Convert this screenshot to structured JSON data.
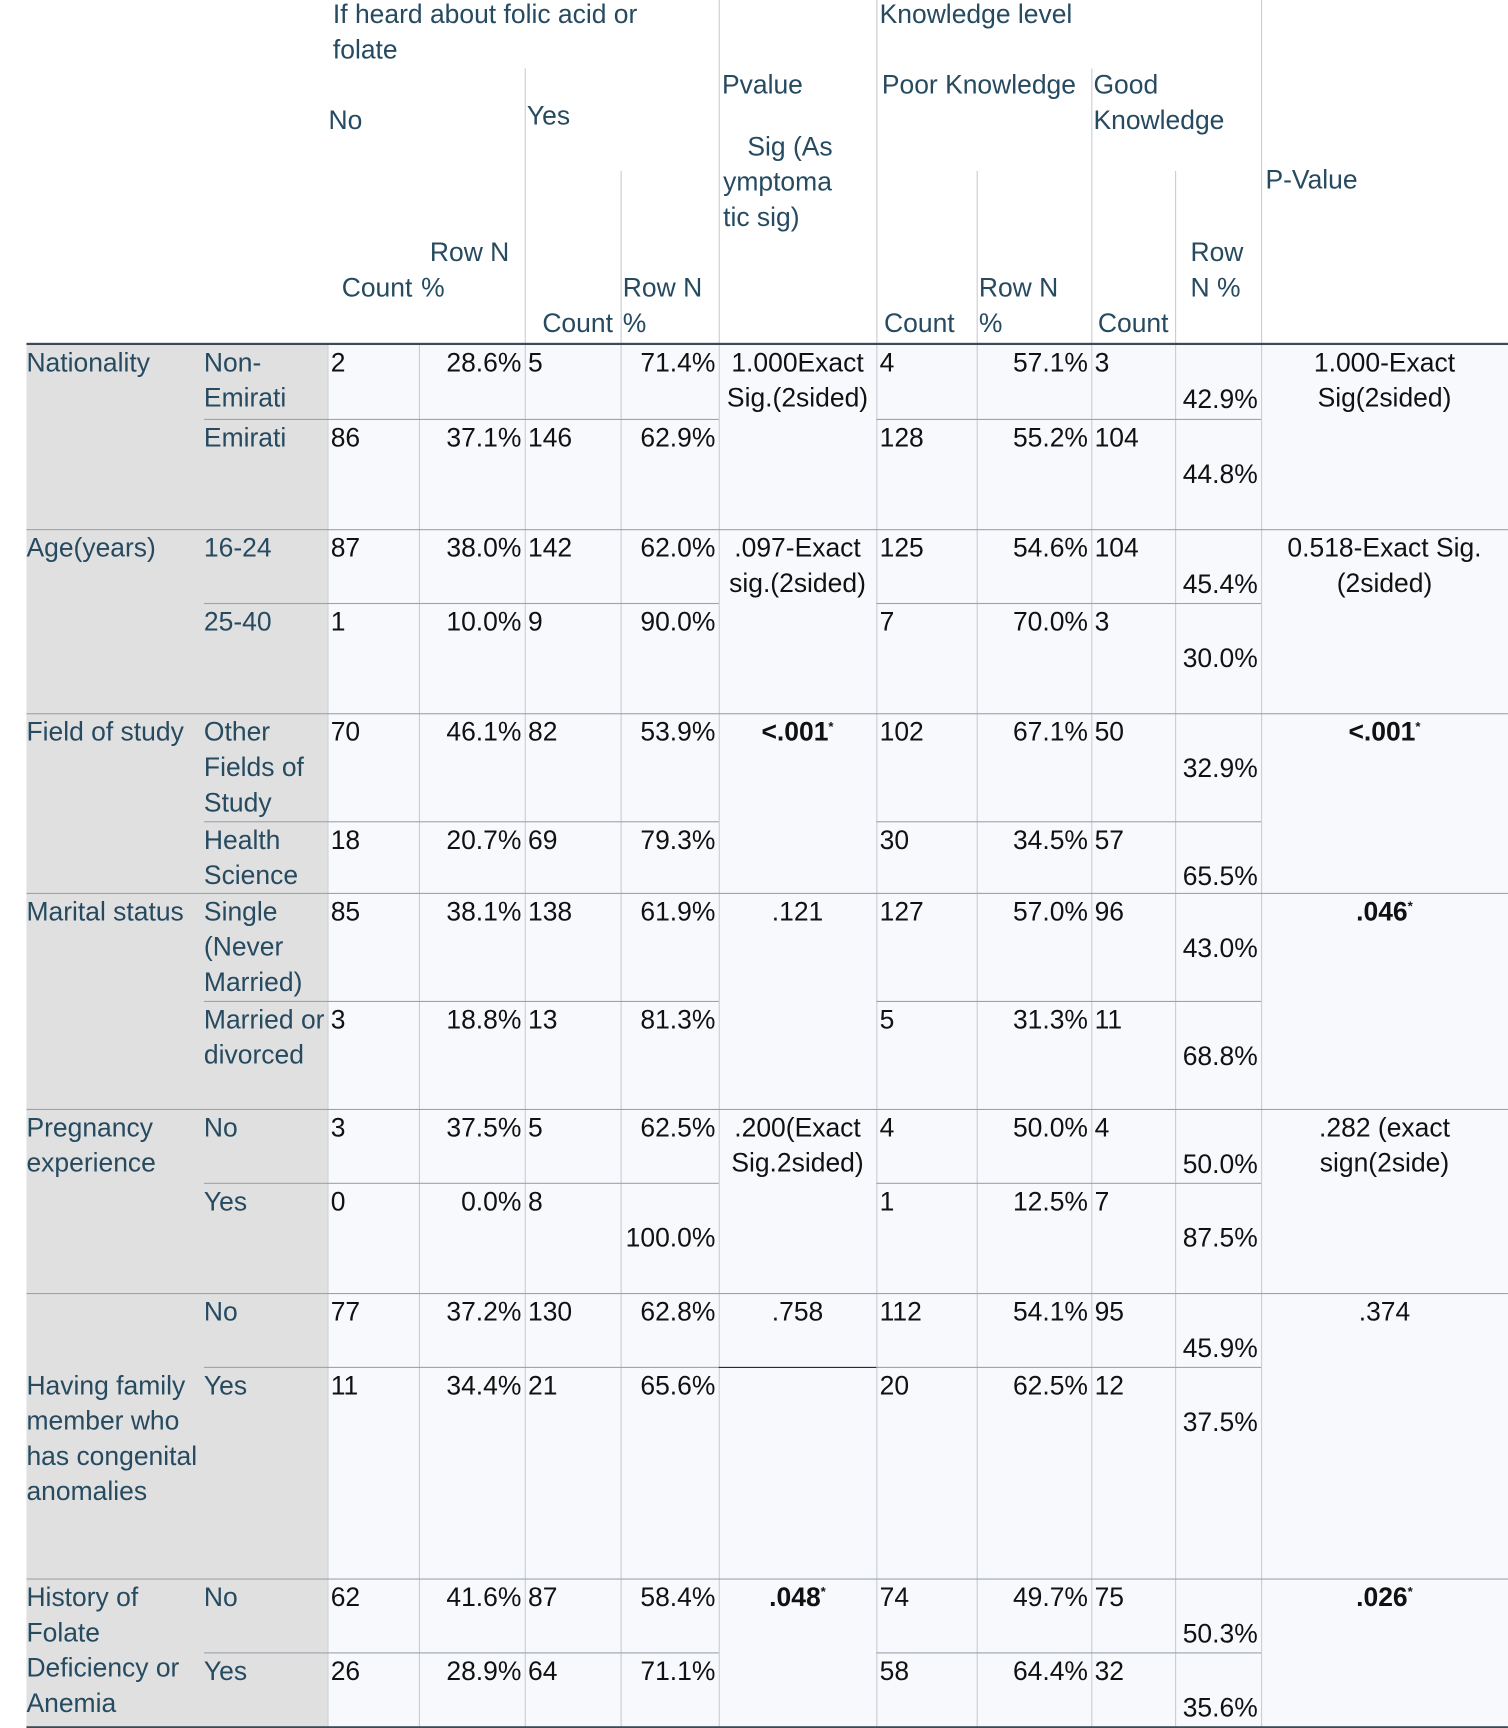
{
  "header": {
    "group1": "If heard about folic acid or folate",
    "no": "No",
    "yes": "Yes",
    "pvalue1": "Pvalue",
    "pvalue1_sub": "Sig (Asymptomatic sig)",
    "group2": "Knowledge level",
    "poor": "Poor Knowledge",
    "good": "Good Knowledge",
    "pvalue2": "P-Value",
    "count1": "Count",
    "rown1": "Row N %",
    "count2": "Count",
    "rown2": "Row N %",
    "count3": "Count",
    "rown3": "Row N %",
    "count4": "Count",
    "rown4": "Row N %"
  },
  "table": {
    "groups": [
      {
        "label": "Nationality",
        "p1": {
          "text": "1.000Exact Sig.(2sided)"
        },
        "p2": {
          "text": "1.000-Exact Sig(2sided)"
        },
        "rows": [
          {
            "label": "Non-Emirati",
            "cells": [
              2,
              "28.6%",
              5,
              "71.4%",
              4,
              "57.1%",
              3,
              "42.9%"
            ]
          },
          {
            "label": "Emirati",
            "cells": [
              86,
              "37.1%",
              146,
              "62.9%",
              128,
              "55.2%",
              104,
              "44.8%"
            ]
          }
        ]
      },
      {
        "label": "Age(years)",
        "p1": {
          "text": ".097-Exact sig.(2sided)"
        },
        "p2": {
          "text": "0.518-Exact Sig.(2sided)"
        },
        "rows": [
          {
            "label": "16-24",
            "cells": [
              87,
              "38.0%",
              142,
              "62.0%",
              125,
              "54.6%",
              104,
              "45.4%"
            ]
          },
          {
            "label": "25-40",
            "cells": [
              1,
              "10.0%",
              9,
              "90.0%",
              7,
              "70.0%",
              3,
              "30.0%"
            ]
          }
        ]
      },
      {
        "label": "Field of study",
        "p1": {
          "text": "<.001",
          "sup": "*",
          "bold": true
        },
        "p2": {
          "text": "<.001",
          "sup": "*",
          "bold": true
        },
        "rows": [
          {
            "label": "Other Fields of Study",
            "cells": [
              70,
              "46.1%",
              82,
              "53.9%",
              102,
              "67.1%",
              50,
              "32.9%"
            ]
          },
          {
            "label": "Health Science",
            "cells": [
              18,
              "20.7%",
              69,
              "79.3%",
              30,
              "34.5%",
              57,
              "65.5%"
            ]
          }
        ]
      },
      {
        "label": "Marital status",
        "p1": {
          "text": ".121"
        },
        "p2": {
          "text": ".046",
          "sup": "*",
          "bold": true
        },
        "rows": [
          {
            "label": "Single (Never Married)",
            "cells": [
              85,
              "38.1%",
              138,
              "61.9%",
              127,
              "57.0%",
              96,
              "43.0%"
            ]
          },
          {
            "label": "Married or divorced",
            "cells": [
              3,
              "18.8%",
              13,
              "81.3%",
              5,
              "31.3%",
              11,
              "68.8%"
            ]
          }
        ]
      },
      {
        "label": "Pregnancy experience",
        "p1": {
          "text": ".200(Exact Sig.2sided)"
        },
        "p2": {
          "text": ".282 (exact sign(2side)"
        },
        "rows": [
          {
            "label": "No",
            "cells": [
              3,
              "37.5%",
              5,
              "62.5%",
              4,
              "50.0%",
              4,
              "50.0%"
            ]
          },
          {
            "label": "Yes",
            "cells": [
              0,
              "0.0%",
              8,
              "100.0%",
              1,
              "12.5%",
              7,
              "87.5%"
            ]
          }
        ]
      },
      {
        "label": "Having family member who has congenital anomalies",
        "p1": {
          "text": ".758"
        },
        "p2": {
          "text": ".374"
        },
        "rows": [
          {
            "label": "No",
            "cells": [
              77,
              "37.2%",
              130,
              "62.8%",
              112,
              "54.1%",
              95,
              "45.9%"
            ]
          },
          {
            "label": "Yes",
            "cells": [
              11,
              "34.4%",
              21,
              "65.6%",
              20,
              "62.5%",
              12,
              "37.5%"
            ]
          }
        ]
      },
      {
        "label": "History of Folate Deficiency or Anemia",
        "p1": {
          "text": ".048",
          "sup": "*",
          "bold": true
        },
        "p2": {
          "text": ".026",
          "sup": "*",
          "bold": true
        },
        "rows": [
          {
            "label": "No",
            "cells": [
              62,
              "41.6%",
              87,
              "58.4%",
              74,
              "49.7%",
              75,
              "50.3%"
            ]
          },
          {
            "label": "Yes",
            "cells": [
              26,
              "28.9%",
              64,
              "71.1%",
              58,
              "64.4%",
              32,
              "35.6%"
            ]
          }
        ]
      }
    ]
  }
}
